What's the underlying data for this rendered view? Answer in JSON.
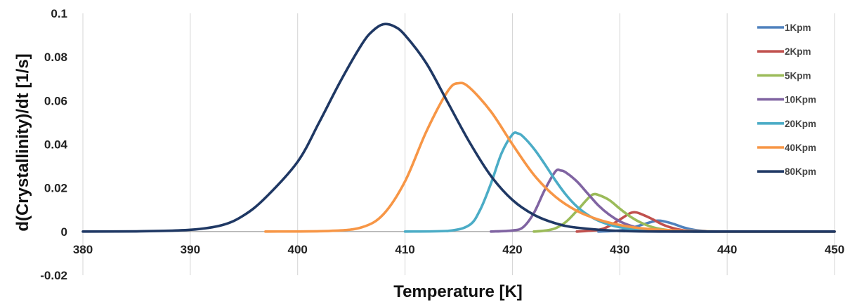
{
  "chart_data": {
    "type": "line",
    "title": "",
    "xlabel": "Temperature  [K]",
    "ylabel": "d(Crystallinity)/dt  [1/s]",
    "xlim": [
      380,
      450
    ],
    "ylim": [
      -0.02,
      0.1
    ],
    "xticks": [
      380,
      390,
      400,
      410,
      420,
      430,
      440,
      450
    ],
    "yticks": [
      -0.02,
      0,
      0.02,
      0.04,
      0.06,
      0.08,
      0.1
    ],
    "ytick_labels": [
      "-0.02",
      "0",
      "0.02",
      "0.04",
      "0.06",
      "0.08",
      "0.1"
    ],
    "grid": "vertical",
    "legend_position": "right",
    "series": [
      {
        "name": "1Kpm",
        "color": "#4f81bd",
        "points": [
          [
            428,
            0
          ],
          [
            430,
            0.0005
          ],
          [
            431,
            0.0015
          ],
          [
            432,
            0.003
          ],
          [
            433,
            0.0045
          ],
          [
            433.5,
            0.005
          ],
          [
            434,
            0.0048
          ],
          [
            435,
            0.0035
          ],
          [
            436,
            0.0018
          ],
          [
            437,
            0.0007
          ],
          [
            438,
            0.0002
          ],
          [
            439,
            0
          ],
          [
            450,
            0
          ]
        ]
      },
      {
        "name": "2Kpm",
        "color": "#c0504d",
        "points": [
          [
            426,
            0
          ],
          [
            428,
            0.0008
          ],
          [
            429,
            0.0025
          ],
          [
            430,
            0.0055
          ],
          [
            431,
            0.0085
          ],
          [
            431.5,
            0.0088
          ],
          [
            432,
            0.008
          ],
          [
            433,
            0.0058
          ],
          [
            434,
            0.0032
          ],
          [
            435,
            0.0015
          ],
          [
            436,
            0.0005
          ],
          [
            437,
            0.0001
          ],
          [
            438,
            0
          ],
          [
            450,
            0
          ]
        ]
      },
      {
        "name": "5Kpm",
        "color": "#9bbb59",
        "points": [
          [
            422,
            0
          ],
          [
            423,
            0.0004
          ],
          [
            424,
            0.0015
          ],
          [
            425,
            0.0045
          ],
          [
            426,
            0.0095
          ],
          [
            427,
            0.015
          ],
          [
            427.5,
            0.017
          ],
          [
            428,
            0.0168
          ],
          [
            429,
            0.0145
          ],
          [
            430,
            0.0105
          ],
          [
            431,
            0.0068
          ],
          [
            432,
            0.004
          ],
          [
            433,
            0.0021
          ],
          [
            434,
            0.001
          ],
          [
            435,
            0.0004
          ],
          [
            437,
            0
          ],
          [
            450,
            0
          ]
        ]
      },
      {
        "name": "10Kpm",
        "color": "#8064a2",
        "points": [
          [
            418,
            0
          ],
          [
            420,
            0.0005
          ],
          [
            421,
            0.002
          ],
          [
            422,
            0.0085
          ],
          [
            423,
            0.019
          ],
          [
            424,
            0.0275
          ],
          [
            424.5,
            0.028
          ],
          [
            425,
            0.027
          ],
          [
            426,
            0.023
          ],
          [
            427,
            0.0175
          ],
          [
            428,
            0.012
          ],
          [
            429,
            0.0078
          ],
          [
            430,
            0.0047
          ],
          [
            431,
            0.0027
          ],
          [
            432,
            0.0014
          ],
          [
            434,
            0.0003
          ],
          [
            436,
            0
          ],
          [
            450,
            0
          ]
        ]
      },
      {
        "name": "20Kpm",
        "color": "#4bacc6",
        "points": [
          [
            410,
            0
          ],
          [
            414,
            0.0003
          ],
          [
            416,
            0.003
          ],
          [
            417,
            0.01
          ],
          [
            418,
            0.022
          ],
          [
            419,
            0.036
          ],
          [
            420,
            0.0445
          ],
          [
            420.5,
            0.045
          ],
          [
            421,
            0.0435
          ],
          [
            422,
            0.038
          ],
          [
            423,
            0.031
          ],
          [
            424,
            0.0235
          ],
          [
            425,
            0.0168
          ],
          [
            426,
            0.0115
          ],
          [
            427,
            0.0077
          ],
          [
            428,
            0.005
          ],
          [
            429,
            0.0032
          ],
          [
            430,
            0.002
          ],
          [
            432,
            0.0008
          ],
          [
            435,
            0.0002
          ],
          [
            438,
            0
          ],
          [
            450,
            0
          ]
        ]
      },
      {
        "name": "40Kpm",
        "color": "#f79646",
        "points": [
          [
            397,
            0
          ],
          [
            403,
            0.0003
          ],
          [
            406,
            0.002
          ],
          [
            408,
            0.008
          ],
          [
            410,
            0.023
          ],
          [
            412,
            0.046
          ],
          [
            414,
            0.0645
          ],
          [
            415,
            0.068
          ],
          [
            416,
            0.066
          ],
          [
            418,
            0.055
          ],
          [
            420,
            0.04
          ],
          [
            422,
            0.026
          ],
          [
            424,
            0.016
          ],
          [
            426,
            0.0095
          ],
          [
            428,
            0.0055
          ],
          [
            430,
            0.003
          ],
          [
            432,
            0.0015
          ],
          [
            435,
            0.0005
          ],
          [
            440,
            0
          ],
          [
            450,
            0
          ]
        ]
      },
      {
        "name": "80Kpm",
        "color": "#1f3864",
        "points": [
          [
            380,
            0
          ],
          [
            385,
            0.0001
          ],
          [
            390,
            0.0008
          ],
          [
            393,
            0.003
          ],
          [
            395,
            0.0075
          ],
          [
            397,
            0.0155
          ],
          [
            400,
            0.032
          ],
          [
            402,
            0.05
          ],
          [
            404,
            0.069
          ],
          [
            406,
            0.086
          ],
          [
            407,
            0.092
          ],
          [
            408,
            0.095
          ],
          [
            409,
            0.094
          ],
          [
            410,
            0.09
          ],
          [
            412,
            0.077
          ],
          [
            414,
            0.059
          ],
          [
            416,
            0.041
          ],
          [
            418,
            0.0255
          ],
          [
            420,
            0.0145
          ],
          [
            422,
            0.0077
          ],
          [
            424,
            0.0038
          ],
          [
            426,
            0.0018
          ],
          [
            430,
            0.0003
          ],
          [
            435,
            0
          ],
          [
            450,
            0
          ]
        ]
      }
    ]
  }
}
